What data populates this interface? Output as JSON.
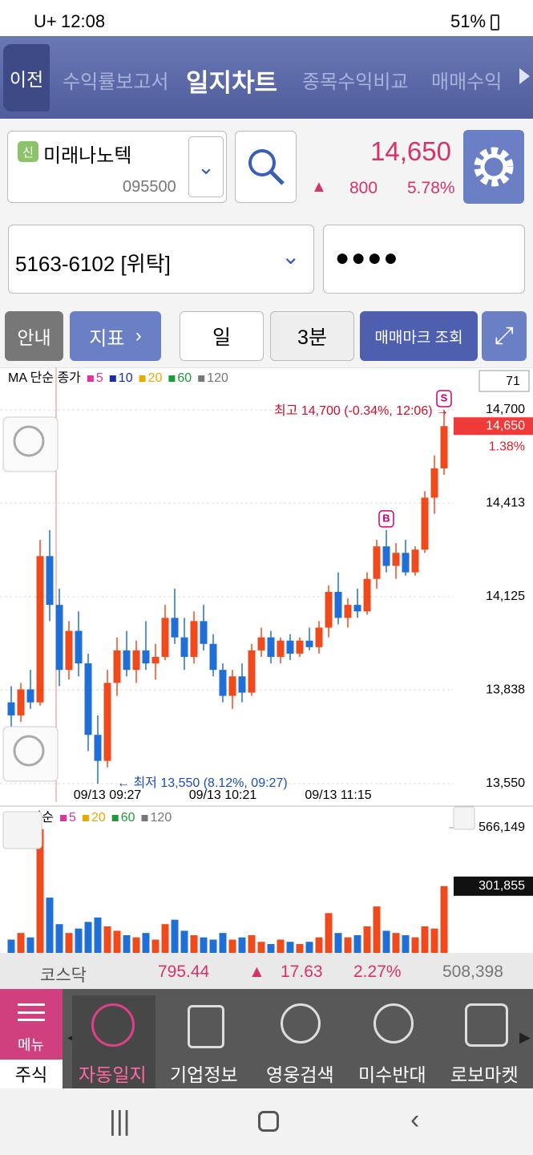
{
  "status_bar": {
    "carrier": "U+",
    "time": "12:08",
    "battery": "51%"
  },
  "nav": {
    "back": "이전",
    "tabs": [
      "수익률보고서",
      "일지차트",
      "종목수익비교",
      "매매수익"
    ]
  },
  "stock": {
    "badge": "신",
    "name": "미래나노텍",
    "code": "095500",
    "price": "14,650",
    "change_sign": "▲",
    "change": "800",
    "change_rate": "5.78%"
  },
  "account": {
    "number": "5163-6102 [위탁]",
    "password": "●●●●"
  },
  "toolbar": {
    "guide": "안내",
    "indicator": "지표",
    "period": "일",
    "interval": "3분",
    "trade_mark": "매매마크 조회"
  },
  "index": {
    "name": "코스닥",
    "value": "795.44",
    "sign": "▲",
    "change": "17.63",
    "rate": "2.27%",
    "volume": "508,398"
  },
  "menu": {
    "menu": "메뉴",
    "items": [
      "주식",
      "자동일지",
      "기업정보",
      "영웅검색",
      "미수반대",
      "로보마켓"
    ]
  },
  "chart_data": [
    {
      "type": "candlestick",
      "legend_title": "MA 단순 종가",
      "period": 71,
      "ma_legend": [
        {
          "name": "5",
          "color": "#e0359c"
        },
        {
          "name": "10",
          "color": "#1a2fa0"
        },
        {
          "name": "20",
          "color": "#e8a900"
        },
        {
          "name": "60",
          "color": "#1f9a3a"
        },
        {
          "name": "120",
          "color": "#777777"
        }
      ],
      "up_color": "#f04a1c",
      "down_color": "#1f6fd6",
      "ylim": [
        13550,
        14700
      ],
      "yticks": [
        {
          "value": 14700,
          "label": "14,700"
        },
        {
          "value": 14413,
          "label": "14,413"
        },
        {
          "value": 14125,
          "label": "14,125"
        },
        {
          "value": 13838,
          "label": "13,838"
        },
        {
          "value": 13550,
          "label": "13,550"
        }
      ],
      "current": {
        "value": 14650,
        "label": "14,650"
      },
      "current_rate": "1.38%",
      "high_note": "최고 14,700 (-0.34%, 12:06) →",
      "low_note": "← 최저 13,550 (8.12%, 09:27)",
      "buy_mark": "B",
      "sell_mark": "S",
      "categories": [
        null,
        null,
        null,
        null,
        null,
        null,
        null,
        null,
        null,
        null,
        "09/13 09:27",
        null,
        null,
        null,
        null,
        null,
        null,
        null,
        null,
        null,
        null,
        null,
        "09/13 10:21",
        null,
        null,
        null,
        null,
        null,
        null,
        null,
        null,
        null,
        null,
        null,
        "09/13 11:15",
        null,
        null,
        null,
        null,
        null,
        null,
        null,
        null,
        null,
        null,
        null
      ],
      "open": [
        13800,
        13760,
        13840,
        13800,
        14250,
        14100,
        13900,
        14020,
        13920,
        13700,
        13620,
        13860,
        13960,
        13900,
        13960,
        13920,
        13940,
        14060,
        14000,
        13940,
        14050,
        13980,
        13900,
        13820,
        13880,
        13830,
        13960,
        14000,
        13940,
        13990,
        13950,
        13990,
        13970,
        14030,
        14140,
        14060,
        14100,
        14080,
        14180,
        14280,
        14220,
        14260,
        14200,
        14270,
        14430,
        14520
      ],
      "high": [
        13850,
        13860,
        13900,
        14300,
        14330,
        14150,
        14050,
        14080,
        13950,
        13760,
        13900,
        14000,
        14020,
        13990,
        14050,
        13980,
        14100,
        14150,
        14060,
        14080,
        14100,
        14010,
        13920,
        13900,
        13920,
        13980,
        14030,
        14020,
        14000,
        14010,
        14000,
        14030,
        14050,
        14160,
        14200,
        14120,
        14150,
        14200,
        14300,
        14330,
        14290,
        14300,
        14280,
        14450,
        14560,
        14700
      ],
      "low": [
        13720,
        13740,
        13780,
        13790,
        14050,
        13850,
        13870,
        13880,
        13650,
        13550,
        13600,
        13820,
        13880,
        13860,
        13900,
        13870,
        13930,
        13980,
        13900,
        13920,
        13960,
        13880,
        13800,
        13780,
        13800,
        13820,
        13940,
        13920,
        13920,
        13930,
        13940,
        13960,
        13950,
        14000,
        14040,
        14030,
        14060,
        14070,
        14150,
        14200,
        14180,
        14190,
        14190,
        14260,
        14380,
        14500
      ],
      "close": [
        13760,
        13840,
        13800,
        14250,
        14100,
        13900,
        14020,
        13920,
        13700,
        13620,
        13860,
        13960,
        13900,
        13960,
        13920,
        13940,
        14060,
        14000,
        13940,
        14050,
        13980,
        13900,
        13820,
        13880,
        13830,
        13960,
        14000,
        13940,
        13990,
        13950,
        13990,
        13970,
        14030,
        14140,
        14060,
        14100,
        14080,
        14180,
        14280,
        14220,
        14260,
        14200,
        14270,
        14430,
        14520,
        14650
      ]
    },
    {
      "type": "bar",
      "legend_title": "MA 단순",
      "ma_legend": [
        {
          "name": "5",
          "color": "#e0359c"
        },
        {
          "name": "20",
          "color": "#e8a900"
        },
        {
          "name": "60",
          "color": "#1f9a3a"
        },
        {
          "name": "120",
          "color": "#777777"
        }
      ],
      "ylim": [
        0,
        566149
      ],
      "yticks": [
        {
          "value": 566149,
          "label": "566,149"
        }
      ],
      "current": {
        "value": 301855,
        "label": "301,855"
      },
      "values": [
        60000,
        90000,
        70000,
        560000,
        250000,
        130000,
        90000,
        110000,
        140000,
        160000,
        120000,
        100000,
        80000,
        70000,
        90000,
        60000,
        130000,
        150000,
        100000,
        80000,
        70000,
        60000,
        90000,
        60000,
        70000,
        80000,
        50000,
        40000,
        60000,
        50000,
        40000,
        50000,
        70000,
        180000,
        90000,
        70000,
        80000,
        120000,
        210000,
        100000,
        90000,
        80000,
        70000,
        120000,
        110000,
        301855
      ]
    }
  ]
}
